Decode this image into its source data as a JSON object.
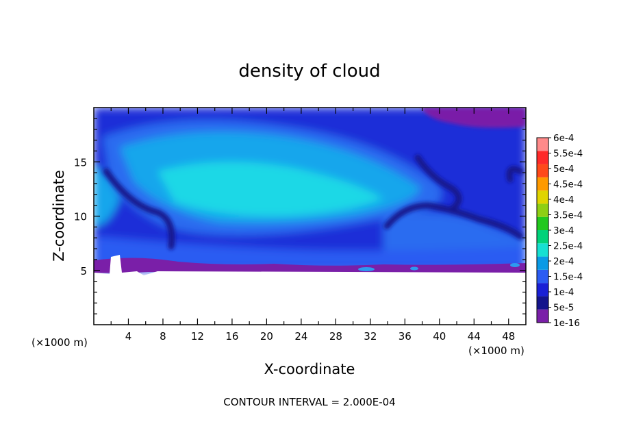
{
  "chart_data": {
    "type": "heatmap",
    "title": "density of cloud",
    "xlabel": "X-coordinate",
    "ylabel": "Z-coordinate",
    "x_unit_left": "(×1000 m)",
    "x_unit_right": "(×1000 m)",
    "xlim": [
      0,
      50
    ],
    "ylim": [
      0,
      20
    ],
    "x_ticks": [
      4,
      8,
      12,
      16,
      20,
      24,
      28,
      32,
      36,
      40,
      44,
      48
    ],
    "y_ticks": [
      5,
      10,
      15
    ],
    "colorbar": {
      "levels": [
        "1e-16",
        "5e-5",
        "1e-4",
        "1.5e-4",
        "2e-4",
        "2.5e-4",
        "3e-4",
        "3.5e-4",
        "4e-4",
        "4.5e-4",
        "5e-4",
        "5.5e-4",
        "6e-4"
      ],
      "colors": [
        "#7a1fa8",
        "#14148c",
        "#1a20d6",
        "#2c5cf2",
        "#0a9ae6",
        "#16e0d2",
        "#00d27a",
        "#22c81e",
        "#8fcf14",
        "#e0d400",
        "#ff9a00",
        "#ff4a1a",
        "#ff2a2a",
        "#ff8a8a"
      ]
    },
    "footnote": "CONTOUR INTERVAL = 2.000E-04"
  }
}
